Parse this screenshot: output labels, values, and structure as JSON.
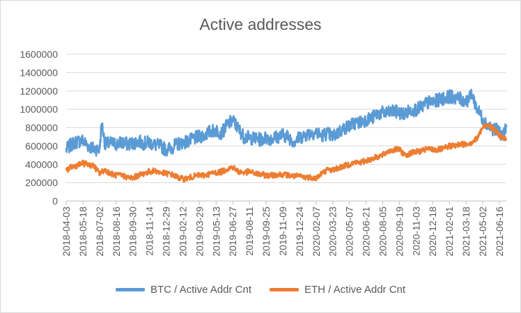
{
  "chart_data": {
    "type": "line",
    "title": "Active addresses",
    "xlabel": "",
    "ylabel": "",
    "ylim": [
      0,
      1600000
    ],
    "yticks": [
      "0",
      "200000",
      "400000",
      "600000",
      "800000",
      "1000000",
      "1200000",
      "1400000",
      "1600000"
    ],
    "grid": true,
    "legend_position": "bottom",
    "x_tick_labels": [
      "2018-04-03",
      "2018-05-18",
      "2018-07-02",
      "2018-08-16",
      "2018-09-30",
      "2018-11-14",
      "2018-12-29",
      "2019-02-12",
      "2019-03-29",
      "2019-05-13",
      "2019-06-27",
      "2019-08-11",
      "2019-09-25",
      "2019-11-09",
      "2019-12-24",
      "2020-02-07",
      "2020-03-23",
      "2020-05-07",
      "2020-06-21",
      "2020-08-05",
      "2020-09-19",
      "2020-11-03",
      "2020-12-18",
      "2021-02-01",
      "2021-03-18",
      "2021-05-02",
      "2021-06-16"
    ],
    "x_range": [
      "2018-04-03",
      "2021-07-05"
    ],
    "series": [
      {
        "name": "BTC / Active Addr Cnt",
        "color": "#5b9bd5",
        "x": [
          "2018-04-03",
          "2018-04-18",
          "2018-05-03",
          "2018-05-18",
          "2018-06-02",
          "2018-06-17",
          "2018-07-02",
          "2018-07-08",
          "2018-07-17",
          "2018-08-01",
          "2018-08-16",
          "2018-08-31",
          "2018-09-15",
          "2018-09-30",
          "2018-10-15",
          "2018-10-30",
          "2018-11-14",
          "2018-11-29",
          "2018-12-14",
          "2018-12-29",
          "2019-01-13",
          "2019-01-28",
          "2019-02-12",
          "2019-02-27",
          "2019-03-14",
          "2019-03-29",
          "2019-04-13",
          "2019-04-28",
          "2019-05-13",
          "2019-05-28",
          "2019-06-12",
          "2019-06-27",
          "2019-07-12",
          "2019-07-27",
          "2019-08-11",
          "2019-08-26",
          "2019-09-10",
          "2019-09-25",
          "2019-10-10",
          "2019-10-25",
          "2019-11-09",
          "2019-11-24",
          "2019-12-09",
          "2019-12-24",
          "2020-01-08",
          "2020-01-23",
          "2020-02-07",
          "2020-02-22",
          "2020-03-08",
          "2020-03-23",
          "2020-04-07",
          "2020-04-22",
          "2020-05-07",
          "2020-05-22",
          "2020-06-06",
          "2020-06-21",
          "2020-07-06",
          "2020-07-21",
          "2020-08-05",
          "2020-08-20",
          "2020-09-04",
          "2020-09-19",
          "2020-10-04",
          "2020-10-19",
          "2020-11-03",
          "2020-11-18",
          "2020-12-03",
          "2020-12-18",
          "2021-01-02",
          "2021-01-17",
          "2021-02-01",
          "2021-02-16",
          "2021-03-03",
          "2021-03-18",
          "2021-03-28",
          "2021-04-02",
          "2021-04-17",
          "2021-05-02",
          "2021-05-17",
          "2021-06-01",
          "2021-06-16",
          "2021-06-26",
          "2021-07-05"
        ],
        "values": [
          560000,
          620000,
          650000,
          660000,
          600000,
          570000,
          560000,
          850000,
          620000,
          630000,
          620000,
          640000,
          620000,
          630000,
          650000,
          630000,
          640000,
          610000,
          600000,
          560000,
          580000,
          620000,
          640000,
          650000,
          680000,
          700000,
          720000,
          760000,
          770000,
          740000,
          830000,
          880000,
          790000,
          700000,
          690000,
          680000,
          670000,
          690000,
          680000,
          700000,
          720000,
          700000,
          650000,
          690000,
          720000,
          740000,
          750000,
          710000,
          740000,
          700000,
          750000,
          790000,
          820000,
          850000,
          860000,
          890000,
          900000,
          950000,
          960000,
          960000,
          980000,
          960000,
          950000,
          990000,
          1000000,
          1020000,
          1070000,
          1080000,
          1100000,
          1120000,
          1140000,
          1130000,
          1110000,
          1090000,
          1120000,
          1180000,
          1000000,
          900000,
          820000,
          780000,
          760000,
          700000,
          800000
        ]
      },
      {
        "name": "ETH / Active Addr Cnt",
        "color": "#ed7d31",
        "x": [
          "2018-04-03",
          "2018-04-18",
          "2018-05-03",
          "2018-05-18",
          "2018-06-02",
          "2018-06-17",
          "2018-07-02",
          "2018-07-17",
          "2018-08-01",
          "2018-08-16",
          "2018-08-31",
          "2018-09-15",
          "2018-09-30",
          "2018-10-15",
          "2018-10-30",
          "2018-11-14",
          "2018-11-29",
          "2018-12-14",
          "2018-12-29",
          "2019-01-13",
          "2019-01-28",
          "2019-02-12",
          "2019-02-27",
          "2019-03-14",
          "2019-03-29",
          "2019-04-13",
          "2019-04-28",
          "2019-05-13",
          "2019-05-28",
          "2019-06-12",
          "2019-06-27",
          "2019-07-12",
          "2019-07-27",
          "2019-08-11",
          "2019-08-26",
          "2019-09-10",
          "2019-09-25",
          "2019-10-10",
          "2019-10-25",
          "2019-11-09",
          "2019-11-24",
          "2019-12-09",
          "2019-12-24",
          "2020-01-08",
          "2020-01-23",
          "2020-02-07",
          "2020-02-22",
          "2020-03-08",
          "2020-03-23",
          "2020-04-07",
          "2020-04-22",
          "2020-05-07",
          "2020-05-22",
          "2020-06-06",
          "2020-06-21",
          "2020-07-06",
          "2020-07-21",
          "2020-08-05",
          "2020-08-20",
          "2020-09-04",
          "2020-09-19",
          "2020-10-04",
          "2020-10-19",
          "2020-11-03",
          "2020-11-18",
          "2020-12-03",
          "2020-12-18",
          "2021-01-02",
          "2021-01-17",
          "2021-02-01",
          "2021-02-16",
          "2021-03-03",
          "2021-03-18",
          "2021-04-02",
          "2021-04-17",
          "2021-05-02",
          "2021-05-17",
          "2021-06-01",
          "2021-06-16",
          "2021-07-05"
        ],
        "values": [
          340000,
          370000,
          390000,
          410000,
          400000,
          380000,
          300000,
          340000,
          300000,
          280000,
          280000,
          260000,
          250000,
          280000,
          300000,
          320000,
          330000,
          310000,
          300000,
          290000,
          260000,
          240000,
          250000,
          270000,
          280000,
          280000,
          300000,
          310000,
          320000,
          350000,
          370000,
          320000,
          310000,
          320000,
          300000,
          290000,
          280000,
          280000,
          290000,
          290000,
          280000,
          270000,
          270000,
          260000,
          260000,
          250000,
          300000,
          340000,
          340000,
          360000,
          380000,
          400000,
          420000,
          420000,
          440000,
          460000,
          480000,
          500000,
          540000,
          560000,
          560000,
          500000,
          520000,
          540000,
          540000,
          570000,
          560000,
          560000,
          570000,
          600000,
          600000,
          620000,
          620000,
          640000,
          680000,
          800000,
          840000,
          780000,
          720000,
          660000
        ]
      }
    ]
  }
}
